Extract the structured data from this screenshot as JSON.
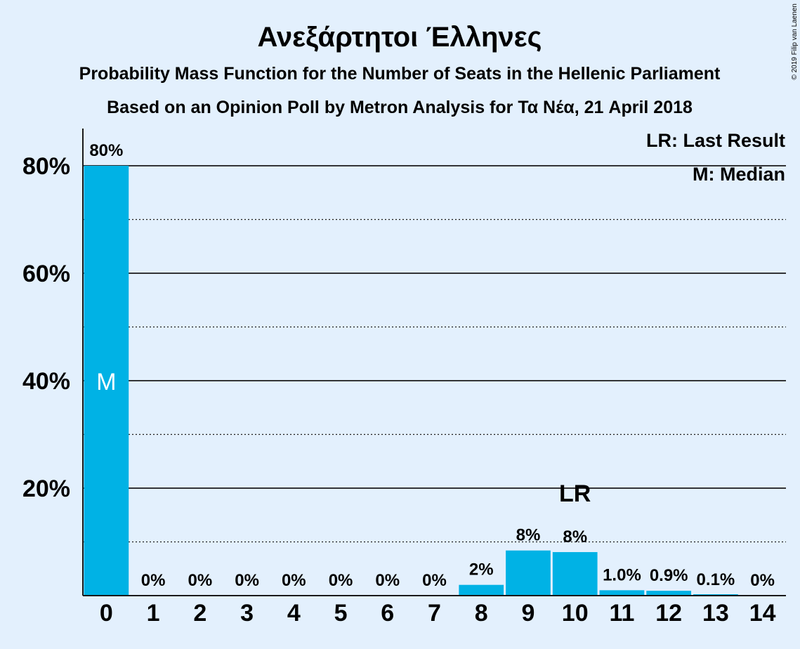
{
  "copyright": "© 2019 Filip van Laenen",
  "chart_data": {
    "type": "bar",
    "title": "Ανεξάρτητοι Έλληνες",
    "subtitle": "Probability Mass Function for the Number of Seats in the Hellenic Parliament",
    "subtitle2": "Based on an Opinion Poll by Metron Analysis for Τα Νέα, 21 April 2018",
    "categories": [
      "0",
      "1",
      "2",
      "3",
      "4",
      "5",
      "6",
      "7",
      "8",
      "9",
      "10",
      "11",
      "12",
      "13",
      "14"
    ],
    "values": [
      80,
      0,
      0,
      0,
      0,
      0,
      0,
      0,
      2,
      8.4,
      8.1,
      1.0,
      0.9,
      0.1,
      0
    ],
    "value_labels": [
      "80%",
      "0%",
      "0%",
      "0%",
      "0%",
      "0%",
      "0%",
      "0%",
      "2%",
      "8%",
      "8%",
      "1.0%",
      "0.9%",
      "0.1%",
      "0%"
    ],
    "yticks": [
      20,
      40,
      60,
      80
    ],
    "ytick_labels": [
      "20%",
      "40%",
      "60%",
      "80%"
    ],
    "ylim": [
      0,
      87
    ],
    "grid": "solid at 20% steps, dotted at 10% midpoints",
    "bar_color": "#00b2e5",
    "median": {
      "category": "0",
      "label": "M"
    },
    "last_result": {
      "category": "10",
      "label": "LR"
    },
    "legend": [
      "LR: Last Result",
      "M: Median"
    ],
    "legend_position": "top-right"
  }
}
